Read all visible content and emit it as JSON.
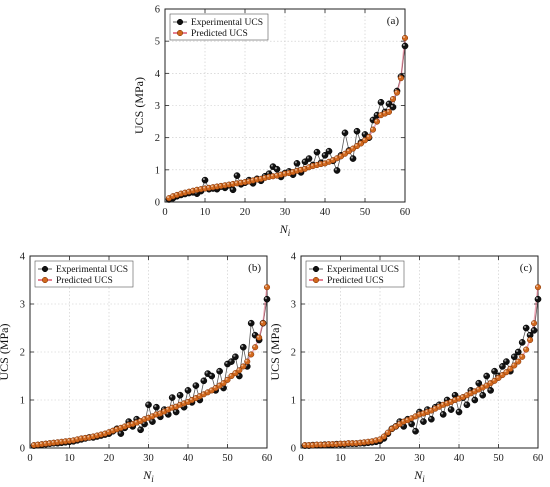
{
  "chart_data": [
    {
      "type": "line",
      "panel_label": "(a)",
      "xlabel": "N",
      "xlabel_sub": "i",
      "ylabel": "UCS (MPa)",
      "xlim": [
        0,
        60
      ],
      "ylim": [
        0,
        6
      ],
      "xticks": [
        0,
        10,
        20,
        30,
        40,
        50,
        60
      ],
      "yticks": [
        0,
        1,
        2,
        3,
        4,
        5,
        6
      ],
      "grid": true,
      "legend": "top-left",
      "series": [
        {
          "name": "Experimental UCS",
          "color": "#111111",
          "values": [
            0.08,
            0.12,
            0.18,
            0.22,
            0.25,
            0.28,
            0.3,
            0.26,
            0.34,
            0.68,
            0.4,
            0.42,
            0.4,
            0.48,
            0.44,
            0.52,
            0.38,
            0.82,
            0.55,
            0.6,
            0.68,
            0.58,
            0.72,
            0.66,
            0.8,
            0.88,
            1.1,
            1.02,
            0.78,
            0.9,
            0.95,
            0.85,
            1.2,
            0.92,
            1.25,
            1.35,
            1.15,
            1.55,
            1.22,
            1.45,
            1.58,
            1.28,
            0.98,
            1.45,
            2.15,
            1.6,
            1.35,
            2.2,
            1.85,
            2.1,
            2.0,
            2.55,
            2.7,
            3.1,
            2.8,
            3.05,
            2.95,
            3.45,
            3.9,
            4.85
          ]
        },
        {
          "name": "Predicted UCS",
          "color": "#d2691e",
          "values": [
            0.12,
            0.18,
            0.22,
            0.26,
            0.29,
            0.32,
            0.35,
            0.38,
            0.4,
            0.42,
            0.44,
            0.46,
            0.48,
            0.5,
            0.52,
            0.54,
            0.56,
            0.58,
            0.6,
            0.62,
            0.64,
            0.67,
            0.7,
            0.72,
            0.75,
            0.78,
            0.8,
            0.82,
            0.85,
            0.88,
            0.9,
            0.93,
            0.97,
            1.0,
            1.03,
            1.08,
            1.12,
            1.15,
            1.18,
            1.2,
            1.25,
            1.3,
            1.36,
            1.42,
            1.5,
            1.58,
            1.66,
            1.74,
            1.82,
            1.92,
            2.02,
            2.25,
            2.5,
            2.7,
            2.75,
            2.8,
            3.2,
            3.4,
            3.85,
            5.1
          ]
        }
      ]
    },
    {
      "type": "line",
      "panel_label": "(b)",
      "xlabel": "N",
      "xlabel_sub": "i",
      "ylabel": "UCS (MPa)",
      "xlim": [
        0,
        60
      ],
      "ylim": [
        0,
        4
      ],
      "xticks": [
        0,
        10,
        20,
        30,
        40,
        50,
        60
      ],
      "yticks": [
        0,
        1,
        2,
        3,
        4
      ],
      "grid": true,
      "legend": "top-left",
      "series": [
        {
          "name": "Experimental UCS",
          "color": "#111111",
          "values": [
            0.05,
            0.06,
            0.07,
            0.08,
            0.09,
            0.1,
            0.1,
            0.11,
            0.12,
            0.13,
            0.14,
            0.16,
            0.18,
            0.2,
            0.22,
            0.22,
            0.24,
            0.26,
            0.28,
            0.3,
            0.35,
            0.4,
            0.3,
            0.42,
            0.55,
            0.45,
            0.6,
            0.38,
            0.5,
            0.9,
            0.55,
            0.85,
            0.65,
            0.8,
            0.7,
            1.05,
            0.75,
            1.1,
            0.85,
            1.2,
            0.95,
            1.3,
            1.0,
            1.4,
            1.55,
            1.5,
            1.2,
            1.6,
            1.25,
            1.75,
            1.8,
            1.9,
            1.5,
            2.1,
            1.7,
            2.6,
            2.35,
            2.25,
            2.6,
            3.1
          ]
        },
        {
          "name": "Predicted UCS",
          "color": "#d2691e",
          "values": [
            0.06,
            0.07,
            0.08,
            0.09,
            0.1,
            0.11,
            0.12,
            0.13,
            0.14,
            0.15,
            0.16,
            0.18,
            0.2,
            0.21,
            0.22,
            0.24,
            0.26,
            0.28,
            0.3,
            0.33,
            0.36,
            0.39,
            0.42,
            0.45,
            0.48,
            0.5,
            0.53,
            0.56,
            0.6,
            0.63,
            0.66,
            0.7,
            0.72,
            0.76,
            0.8,
            0.84,
            0.86,
            0.9,
            0.93,
            0.96,
            1.0,
            1.04,
            1.08,
            1.12,
            1.16,
            1.2,
            1.25,
            1.3,
            1.35,
            1.42,
            1.5,
            1.56,
            1.62,
            1.7,
            1.8,
            1.95,
            2.1,
            2.3,
            2.6,
            3.35
          ]
        }
      ]
    },
    {
      "type": "line",
      "panel_label": "(c)",
      "xlabel": "N",
      "xlabel_sub": "i",
      "ylabel": "UCS (MPa)",
      "xlim": [
        0,
        60
      ],
      "ylim": [
        0,
        4
      ],
      "xticks": [
        0,
        10,
        20,
        30,
        40,
        50,
        60
      ],
      "yticks": [
        0,
        1,
        2,
        3,
        4
      ],
      "grid": true,
      "legend": "top-left",
      "series": [
        {
          "name": "Experimental UCS",
          "color": "#111111",
          "values": [
            0.05,
            0.05,
            0.06,
            0.06,
            0.06,
            0.07,
            0.07,
            0.07,
            0.08,
            0.08,
            0.08,
            0.09,
            0.09,
            0.09,
            0.1,
            0.1,
            0.11,
            0.12,
            0.13,
            0.15,
            0.2,
            0.3,
            0.4,
            0.45,
            0.55,
            0.45,
            0.6,
            0.5,
            0.35,
            0.75,
            0.55,
            0.8,
            0.6,
            0.85,
            0.9,
            0.7,
            1.0,
            0.8,
            1.1,
            0.75,
            1.05,
            0.9,
            1.2,
            1.0,
            1.35,
            1.1,
            1.5,
            1.2,
            1.6,
            1.5,
            1.7,
            1.8,
            1.6,
            1.9,
            2.0,
            2.2,
            2.5,
            2.35,
            2.45,
            3.1
          ]
        },
        {
          "name": "Predicted UCS",
          "color": "#d2691e",
          "values": [
            0.06,
            0.06,
            0.06,
            0.07,
            0.07,
            0.07,
            0.08,
            0.08,
            0.08,
            0.09,
            0.09,
            0.1,
            0.1,
            0.1,
            0.11,
            0.12,
            0.13,
            0.14,
            0.16,
            0.18,
            0.24,
            0.32,
            0.4,
            0.45,
            0.5,
            0.55,
            0.58,
            0.62,
            0.66,
            0.7,
            0.72,
            0.75,
            0.78,
            0.82,
            0.86,
            0.9,
            0.93,
            0.96,
            1.0,
            1.03,
            1.06,
            1.1,
            1.14,
            1.18,
            1.22,
            1.26,
            1.3,
            1.35,
            1.4,
            1.46,
            1.52,
            1.58,
            1.65,
            1.72,
            1.8,
            1.9,
            2.05,
            2.25,
            2.6,
            3.35
          ]
        }
      ]
    }
  ]
}
